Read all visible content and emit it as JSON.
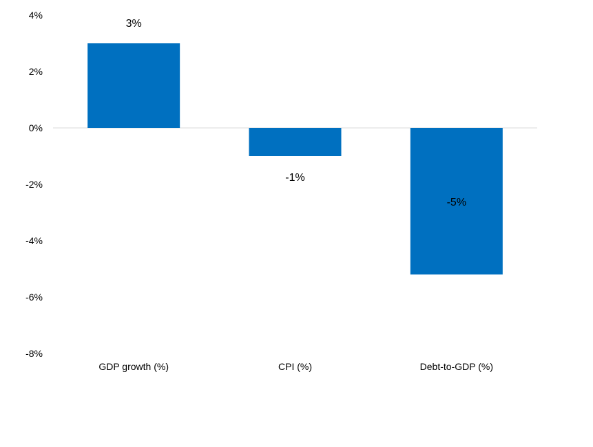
{
  "chart_data": {
    "type": "bar",
    "categories": [
      "GDP growth (%)",
      "CPI (%)",
      "Debt-to-GDP (%)"
    ],
    "values": [
      3.0,
      -1.0,
      -5.2
    ],
    "data_labels": [
      "3%",
      "-1%",
      "-5%"
    ],
    "ylim": [
      -8,
      4
    ],
    "yticks": [
      4,
      2,
      0,
      -2,
      -4,
      -6,
      -8
    ],
    "ytick_labels": [
      "4%",
      "2%",
      "0%",
      "-2%",
      "-4%",
      "-6%",
      "-8%"
    ],
    "title": "",
    "xlabel": "",
    "ylabel": "",
    "grid": false,
    "legend": "none",
    "bar_color": "#0070C0",
    "zero_line_color": "#D9D9D9"
  }
}
